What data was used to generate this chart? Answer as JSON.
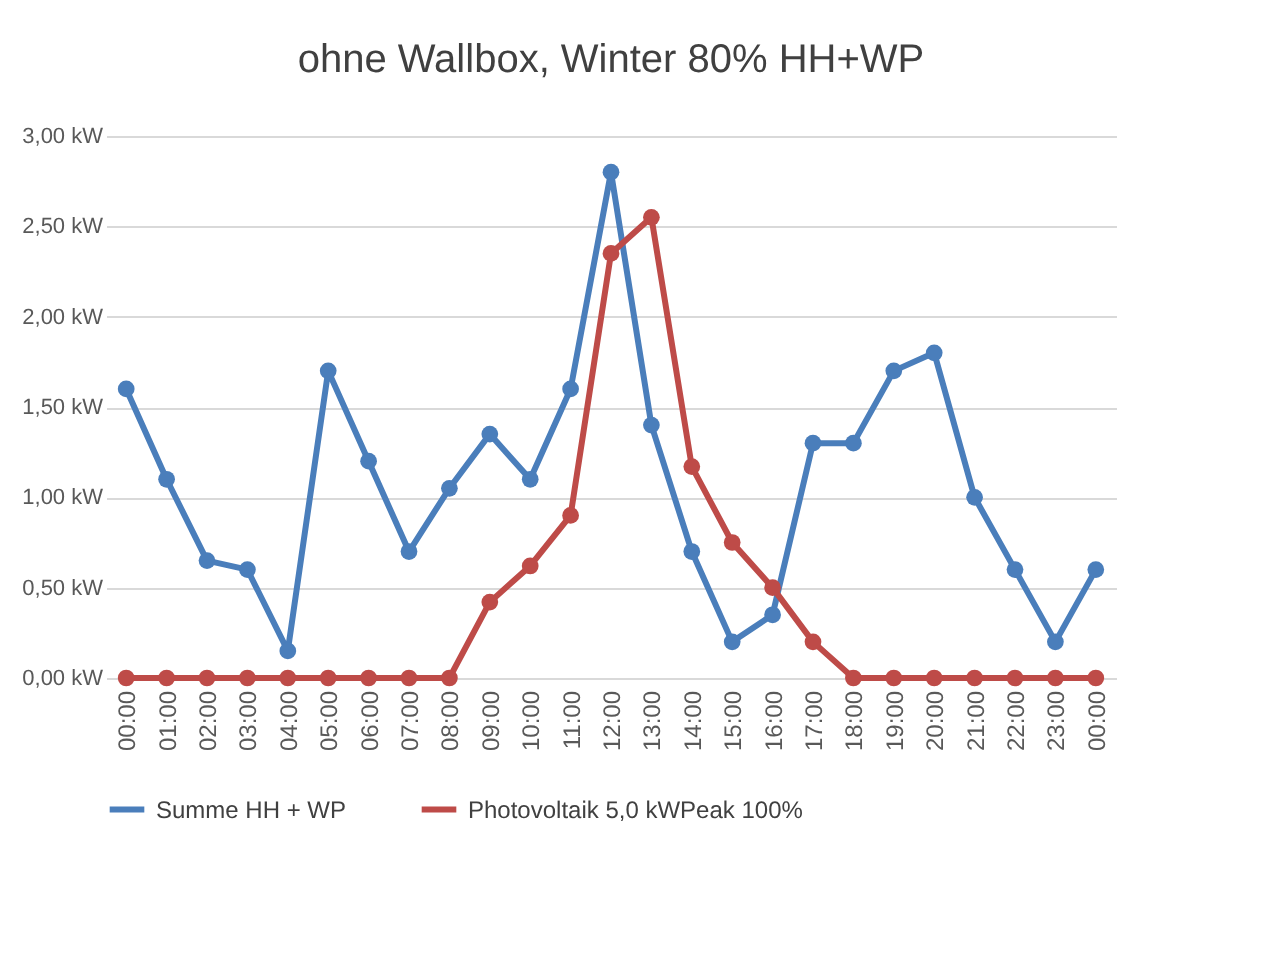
{
  "chart_data": {
    "type": "line",
    "title": "ohne Wallbox, Winter 80% HH+WP",
    "categories": [
      "00:00",
      "01:00",
      "02:00",
      "03:00",
      "04:00",
      "05:00",
      "06:00",
      "07:00",
      "08:00",
      "09:00",
      "10:00",
      "11:00",
      "12:00",
      "13:00",
      "14:00",
      "15:00",
      "16:00",
      "17:00",
      "18:00",
      "19:00",
      "20:00",
      "21:00",
      "22:00",
      "23:00",
      "00:00"
    ],
    "series": [
      {
        "name": "Summe HH + WP",
        "color": "#4a7ebb",
        "values": [
          1.6,
          1.1,
          0.65,
          0.6,
          0.15,
          1.7,
          1.2,
          0.7,
          1.05,
          1.35,
          1.1,
          1.6,
          2.8,
          1.4,
          0.7,
          0.2,
          0.35,
          1.3,
          1.3,
          1.7,
          1.8,
          1.0,
          0.6,
          0.2,
          0.6
        ]
      },
      {
        "name": "Photovoltaik 5,0 kWPeak 100%",
        "color": "#be4b48",
        "values": [
          0,
          0,
          0,
          0,
          0,
          0,
          0,
          0,
          0,
          0.42,
          0.62,
          0.9,
          2.35,
          2.55,
          1.17,
          0.75,
          0.5,
          0.2,
          0,
          0,
          0,
          0,
          0,
          0,
          0
        ]
      }
    ],
    "ylim": [
      0,
      3
    ],
    "yticks": [
      {
        "value": 0,
        "label": "0,00 kW"
      },
      {
        "value": 0.5,
        "label": "0,50 kW"
      },
      {
        "value": 1,
        "label": "1,00 kW"
      },
      {
        "value": 1.5,
        "label": "1,50 kW"
      },
      {
        "value": 2,
        "label": "2,00 kW"
      },
      {
        "value": 2.5,
        "label": "2,50 kW"
      },
      {
        "value": 3,
        "label": "3,00 kW"
      }
    ],
    "grid": "y",
    "legend": "bottom",
    "marker": "circle",
    "line_style": "solid"
  }
}
